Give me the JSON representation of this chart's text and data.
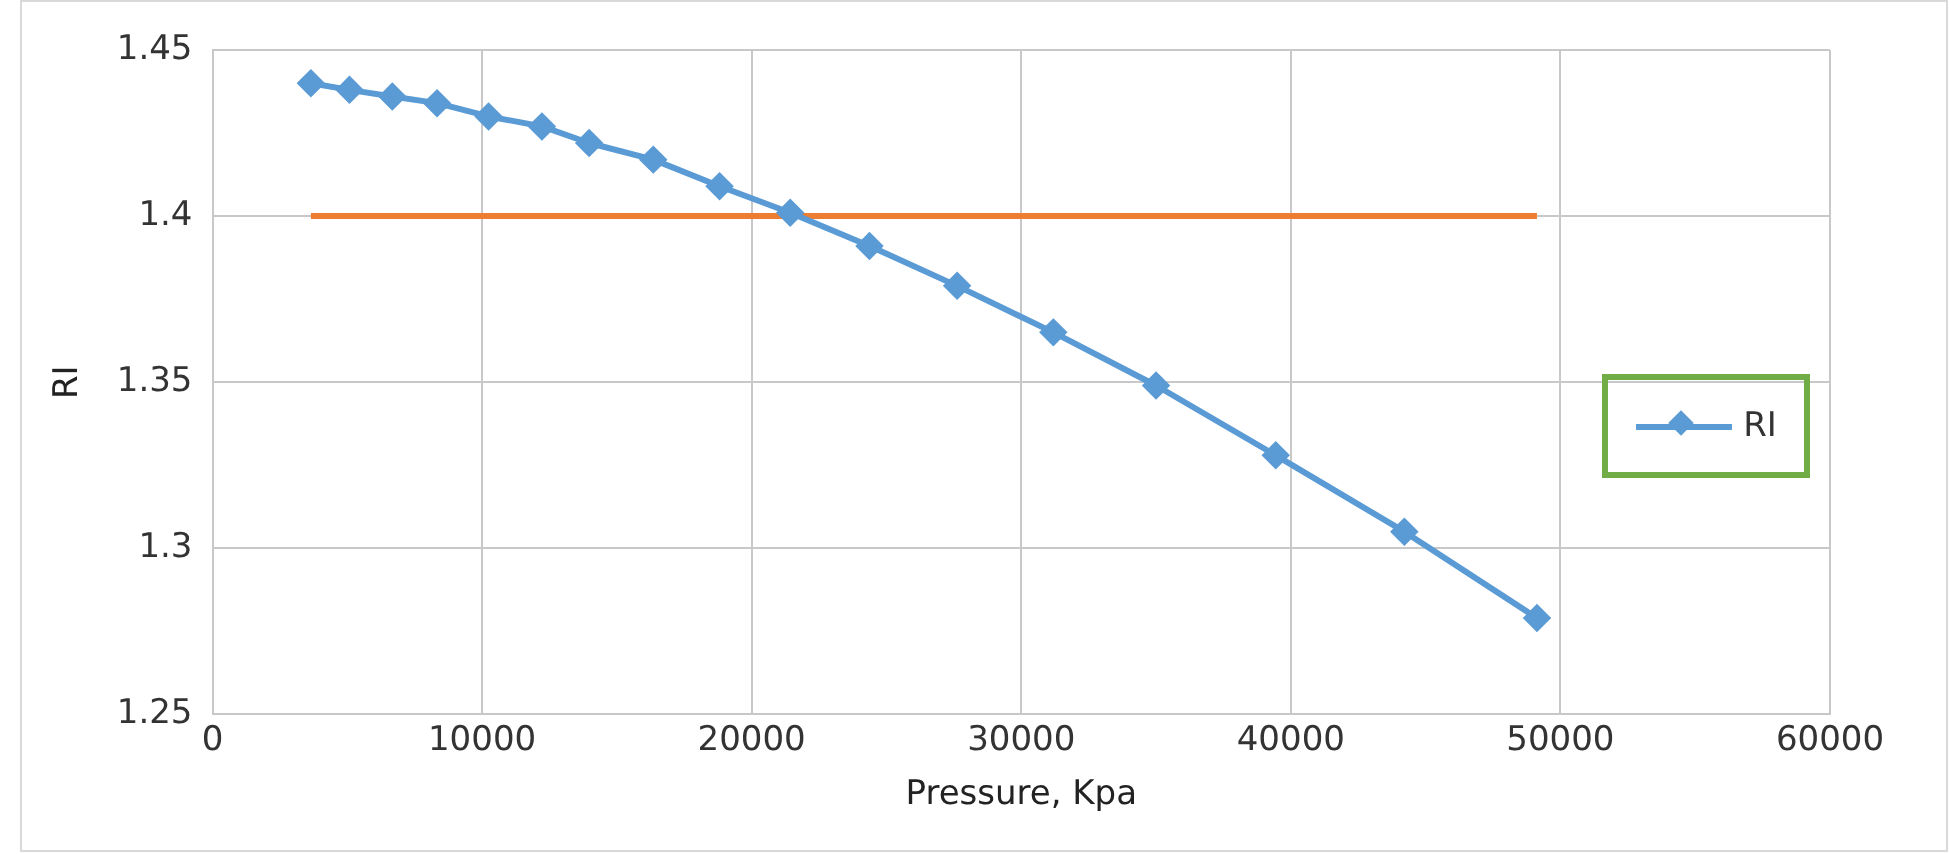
{
  "chart_data": {
    "type": "line",
    "xlabel": "Pressure, Kpa",
    "ylabel": "RI",
    "xlim": [
      0,
      60000
    ],
    "xticks": [
      0,
      10000,
      20000,
      30000,
      40000,
      50000,
      60000
    ],
    "ylim": [
      1.25,
      1.45
    ],
    "yticks": [
      1.25,
      1.3,
      1.35,
      1.4,
      1.45
    ],
    "grid": true,
    "legend": "right",
    "marker": "diamond",
    "line_style": "solid",
    "series": [
      {
        "name": "RI",
        "color": "#5b9bd5",
        "x": [
          3650,
          5080,
          6670,
          8330,
          10240,
          12220,
          13970,
          16350,
          18810,
          21430,
          24370,
          27620,
          31190,
          35000,
          39440,
          44210,
          49130
        ],
        "values": [
          1.44,
          1.438,
          1.436,
          1.434,
          1.43,
          1.427,
          1.422,
          1.417,
          1.409,
          1.401,
          1.391,
          1.379,
          1.365,
          1.349,
          1.328,
          1.305,
          1.279
        ]
      },
      {
        "color": "#ed7d31",
        "x": [
          3650,
          49130
        ],
        "values": [
          1.4,
          1.4
        ],
        "marker": "none"
      }
    ]
  }
}
